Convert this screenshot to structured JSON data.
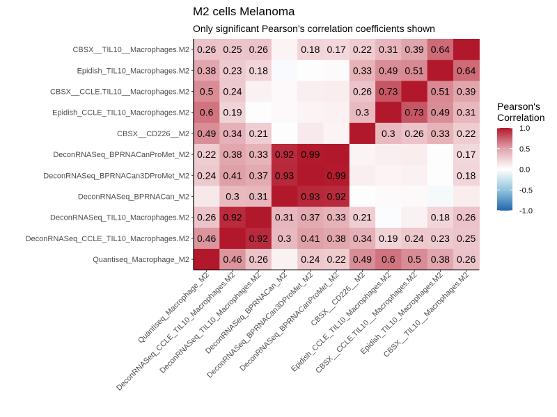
{
  "chart_data": {
    "type": "heatmap",
    "title": "M2 cells Melanoma",
    "subtitle": "Only significant Pearson's correlation coefficients shown",
    "legend": {
      "title_lines": [
        "Pearson's",
        "Correlation"
      ],
      "ticks": [
        "1.0",
        "0.5",
        "0.0",
        "-0.5",
        "-1.0"
      ],
      "tick_values": [
        1.0,
        0.5,
        0.0,
        -0.5,
        -1.0
      ],
      "placement": "right"
    },
    "colors": {
      "high": "#b2182b",
      "mid": "#ffffff",
      "low": "#2166ac"
    },
    "x_categories": [
      "Quantiseq_Macrophage_M2",
      "DeconRNASeq_CCLE_TIL10_Macrophages.M2",
      "DeconRNASeq_TIL10_Macrophages.M2",
      "DeconRNASeq_BPRNACan_M2",
      "DeconRNASeq_BPRNACan3DProMet_M2",
      "DeconRNASeq_BPRNACanProMet_M2",
      "CBSX__CD226__M2",
      "Epidish_CCLE_TIL10_Macrophages.M2",
      "CBSX__CCLE.TIL10__Macrophages.M2",
      "Epidish_TIL10_Macrophages.M2",
      "CBSX__TIL10__Macrophages.M2"
    ],
    "y_categories_top_to_bottom": [
      "CBSX__TIL10__Macrophages.M2",
      "Epidish_TIL10_Macrophages.M2",
      "CBSX__CCLE.TIL10__Macrophages.M2",
      "Epidish_CCLE_TIL10_Macrophages.M2",
      "CBSX__CD226__M2",
      "DeconRNASeq_BPRNACanProMet_M2",
      "DeconRNASeq_BPRNACan3DProMet_M2",
      "DeconRNASeq_BPRNACan_M2",
      "DeconRNASeq_TIL10_Macrophages.M2",
      "DeconRNASeq_CCLE_TIL10_Macrophages.M2",
      "Quantiseq_Macrophage_M2"
    ],
    "values": [
      [
        0.26,
        0.25,
        0.26,
        0.05,
        0.18,
        0.17,
        0.22,
        0.31,
        0.39,
        0.64,
        1.0
      ],
      [
        0.38,
        0.23,
        0.18,
        -0.03,
        0.01,
        0.02,
        0.33,
        0.49,
        0.51,
        1.0,
        0.64
      ],
      [
        0.5,
        0.24,
        0.06,
        0.03,
        0.07,
        0.08,
        0.26,
        0.73,
        1.0,
        0.51,
        0.39
      ],
      [
        0.6,
        0.19,
        -0.01,
        0.03,
        0.05,
        0.06,
        0.3,
        1.0,
        0.73,
        0.49,
        0.31
      ],
      [
        0.49,
        0.34,
        0.21,
        0.01,
        0.09,
        0.05,
        1.0,
        0.3,
        0.26,
        0.33,
        0.22
      ],
      [
        0.22,
        0.38,
        0.33,
        0.92,
        0.99,
        1.0,
        0.05,
        0.07,
        0.08,
        0.01,
        0.17
      ],
      [
        0.24,
        0.41,
        0.37,
        0.93,
        1.0,
        0.99,
        0.07,
        0.05,
        0.06,
        0.01,
        0.18
      ],
      [
        0.1,
        0.3,
        0.31,
        1.0,
        0.93,
        0.92,
        0.01,
        0.02,
        0.03,
        -0.04,
        0.08
      ],
      [
        0.26,
        0.92,
        1.0,
        0.31,
        0.37,
        0.33,
        0.21,
        -0.02,
        0.06,
        0.18,
        0.26
      ],
      [
        0.46,
        1.0,
        0.92,
        0.3,
        0.41,
        0.38,
        0.34,
        0.19,
        0.24,
        0.23,
        0.25
      ],
      [
        1.0,
        0.46,
        0.26,
        0.06,
        0.24,
        0.22,
        0.49,
        0.6,
        0.5,
        0.38,
        0.26
      ]
    ],
    "labels": [
      [
        "0.26",
        "0.25",
        "0.26",
        "",
        "0.18",
        "0.17",
        "0.22",
        "0.31",
        "0.39",
        "0.64",
        ""
      ],
      [
        "0.38",
        "0.23",
        "0.18",
        "",
        "",
        "",
        "0.33",
        "0.49",
        "0.51",
        "",
        "0.64"
      ],
      [
        "0.5",
        "0.24",
        "",
        "",
        "",
        "",
        "0.26",
        "0.73",
        "",
        "0.51",
        "0.39"
      ],
      [
        "0.6",
        "0.19",
        "",
        "",
        "",
        "",
        "0.3",
        "",
        "0.73",
        "0.49",
        "0.31"
      ],
      [
        "0.49",
        "0.34",
        "0.21",
        "",
        "",
        "",
        "",
        "0.3",
        "0.26",
        "0.33",
        "0.22"
      ],
      [
        "0.22",
        "0.38",
        "0.33",
        "0.92",
        "0.99",
        "",
        "",
        "",
        "",
        "",
        "0.17"
      ],
      [
        "0.24",
        "0.41",
        "0.37",
        "0.93",
        "",
        "0.99",
        "",
        "",
        "",
        "",
        "0.18"
      ],
      [
        "",
        "0.3",
        "0.31",
        "",
        "0.93",
        "0.92",
        "",
        "",
        "",
        "",
        ""
      ],
      [
        "0.26",
        "0.92",
        "",
        "0.31",
        "0.37",
        "0.33",
        "0.21",
        "",
        "",
        "0.18",
        "0.26"
      ],
      [
        "0.46",
        "",
        "0.92",
        "0.3",
        "0.41",
        "0.38",
        "0.34",
        "0.19",
        "0.24",
        "0.23",
        "0.25"
      ],
      [
        "",
        "0.46",
        "0.26",
        "",
        "0.24",
        "0.22",
        "0.49",
        "0.6",
        "0.5",
        "0.38",
        "0.26"
      ]
    ],
    "zlim": [
      -1.0,
      1.0
    ],
    "grid": false
  }
}
